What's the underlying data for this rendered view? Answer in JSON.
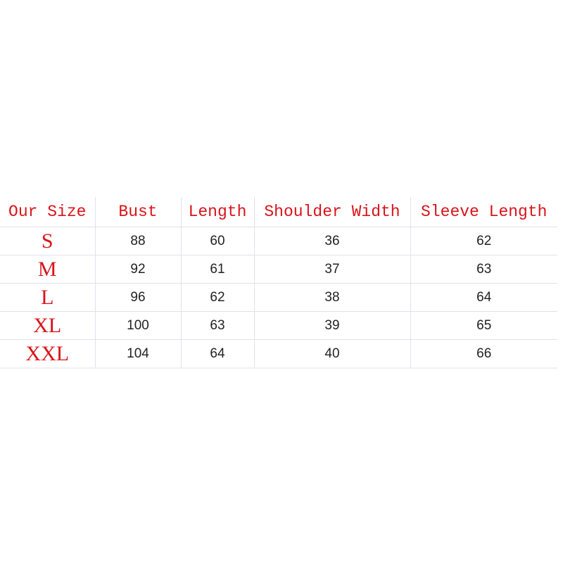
{
  "headers": [
    "Our Size",
    "Bust",
    "Length",
    "Shoulder Width",
    "Sleeve Length"
  ],
  "rows": [
    [
      "S",
      "88",
      "60",
      "36",
      "62"
    ],
    [
      "M",
      "92",
      "61",
      "37",
      "63"
    ],
    [
      "L",
      "96",
      "62",
      "38",
      "64"
    ],
    [
      "XL",
      "100",
      "63",
      "39",
      "65"
    ],
    [
      "XXL",
      "104",
      "64",
      "40",
      "66"
    ]
  ],
  "colors": {
    "header_text": "#d8141a",
    "size_text": "#d8141a",
    "value_text": "#222222",
    "grid": "#dfe2ea"
  }
}
